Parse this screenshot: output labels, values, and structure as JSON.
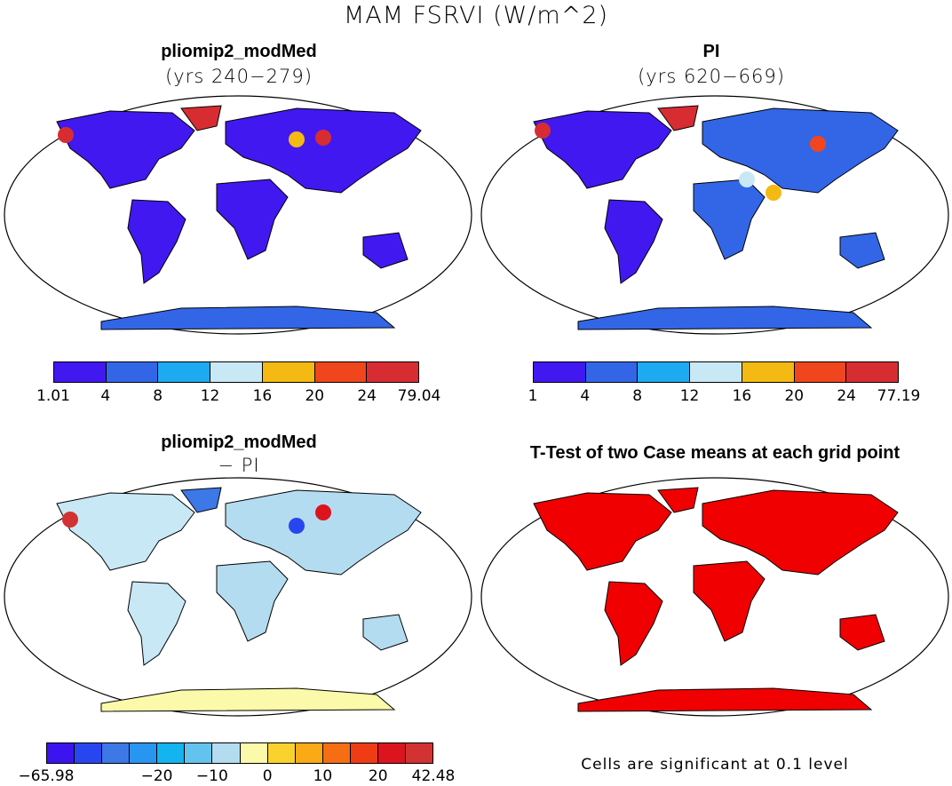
{
  "title": "MAM FSRVI (W/m^2)",
  "panels": {
    "top_left": {
      "title": "pliomip2_modMed",
      "subtitle": "(yrs 240−279)",
      "colorbar_ticks": [
        "1.01",
        "4",
        "8",
        "12",
        "16",
        "20",
        "24",
        "79.04"
      ]
    },
    "top_right": {
      "title": "PI",
      "subtitle": "(yrs 620−669)",
      "colorbar_ticks": [
        "1",
        "4",
        "8",
        "12",
        "16",
        "20",
        "24",
        "77.19"
      ]
    },
    "bottom_left": {
      "title": "pliomip2_modMed",
      "subtitle": "− PI",
      "colorbar_ticks": [
        "−65.98",
        "−20",
        "−10",
        "0",
        "10",
        "20",
        "42.48"
      ]
    },
    "bottom_right": {
      "title": "T-Test of two Case means at each grid point",
      "note": "Cells are significant at 0.1 level"
    }
  },
  "colors": {
    "abs_scale": [
      "#4218f0",
      "#3366e6",
      "#1eaaf0",
      "#c8e8f5",
      "#f5b914",
      "#f0461e",
      "#d72d32"
    ],
    "diff_scale": [
      "#3c14f0",
      "#2846f0",
      "#3c78e6",
      "#2896f0",
      "#14b4f0",
      "#64c3ee",
      "#b4dcf0",
      "#fafaaa",
      "#fad22d",
      "#faaa14",
      "#f56e14",
      "#f03c14",
      "#dc141e",
      "#d23232"
    ],
    "significance": "#f00000",
    "coast": "#000000"
  }
}
